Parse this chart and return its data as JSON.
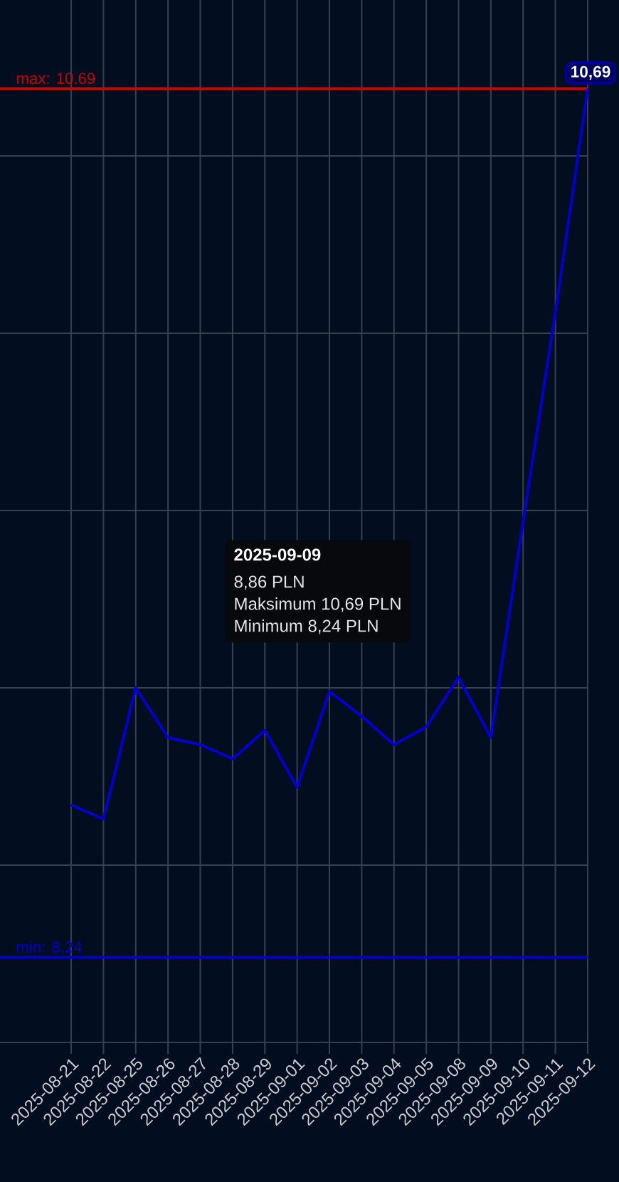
{
  "chart_data": {
    "type": "line",
    "categories": [
      "2025-08-21",
      "2025-08-22",
      "2025-08-25",
      "2025-08-26",
      "2025-08-27",
      "2025-08-28",
      "2025-08-29",
      "2025-09-01",
      "2025-09-02",
      "2025-09-03",
      "2025-09-04",
      "2025-09-05",
      "2025-09-08",
      "2025-09-09",
      "2025-09-10",
      "2025-09-11",
      "2025-09-12"
    ],
    "series": [
      {
        "color": "#0000d0",
        "values": [
          8.67,
          8.63,
          9.0,
          8.86,
          8.84,
          8.8,
          8.88,
          8.72,
          8.99,
          8.92,
          8.84,
          8.89,
          9.03,
          8.86,
          9.47,
          10.06,
          10.69
        ],
        "value_labels": [
          null,
          null,
          null,
          null,
          null,
          null,
          null,
          null,
          null,
          null,
          null,
          null,
          null,
          null,
          null,
          null,
          "10,69"
        ]
      }
    ],
    "ylim": [
      8,
      10.94
    ],
    "yticks": [
      {
        "value": 8,
        "label": null
      },
      {
        "value": 8.5,
        "label": null
      },
      {
        "value": 9,
        "label": null
      },
      {
        "value": 9.5,
        "label": null
      },
      {
        "value": 10,
        "label": null
      },
      {
        "value": 10.5,
        "label": null
      }
    ],
    "tick_labels": "x",
    "grid": true,
    "marker": "none",
    "line_style": "solid",
    "ref_lines": [
      {
        "axis": "y",
        "value": 10.69,
        "label": "max: 10.69",
        "color": "#d00000"
      },
      {
        "axis": "y",
        "value": 8.24,
        "label": "min: 8.24",
        "color": "#0000d0"
      }
    ],
    "annotations": [
      "2025-09-09",
      "8,86 PLN",
      "Maksimum 10,69 PLN",
      "Minimum 8,24 PLN"
    ]
  }
}
